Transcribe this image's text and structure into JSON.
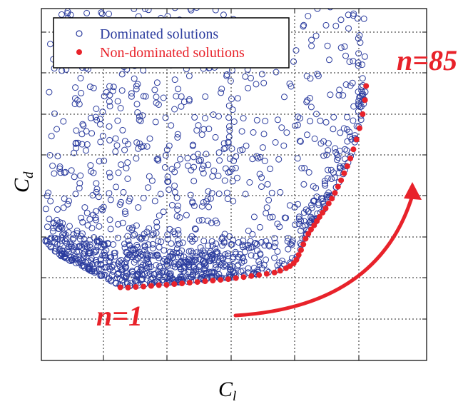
{
  "chart_data": {
    "type": "scatter",
    "title": "",
    "xlabel": {
      "main": "C",
      "sub": "l"
    },
    "ylabel": {
      "main": "C",
      "sub": "d"
    },
    "xlim": [
      0,
      1
    ],
    "ylim": [
      0,
      1
    ],
    "grid": true,
    "legend_position": "top-left",
    "series": [
      {
        "name": "Dominated solutions",
        "marker": "open-circle",
        "color": "#2b3c9e",
        "points": []
      },
      {
        "name": "Non-dominated solutions",
        "marker": "filled-circle",
        "color": "#e8222a",
        "points": [
          [
            0.205,
            0.208
          ],
          [
            0.225,
            0.207
          ],
          [
            0.245,
            0.209
          ],
          [
            0.265,
            0.21
          ],
          [
            0.285,
            0.212
          ],
          [
            0.305,
            0.214
          ],
          [
            0.325,
            0.215
          ],
          [
            0.345,
            0.217
          ],
          [
            0.365,
            0.219
          ],
          [
            0.385,
            0.221
          ],
          [
            0.405,
            0.223
          ],
          [
            0.425,
            0.225
          ],
          [
            0.445,
            0.227
          ],
          [
            0.465,
            0.229
          ],
          [
            0.485,
            0.231
          ],
          [
            0.505,
            0.234
          ],
          [
            0.525,
            0.237
          ],
          [
            0.545,
            0.24
          ],
          [
            0.565,
            0.243
          ],
          [
            0.585,
            0.246
          ],
          [
            0.605,
            0.25
          ],
          [
            0.62,
            0.255
          ],
          [
            0.635,
            0.262
          ],
          [
            0.645,
            0.268
          ],
          [
            0.655,
            0.276
          ],
          [
            0.662,
            0.286
          ],
          [
            0.668,
            0.3
          ],
          [
            0.674,
            0.314
          ],
          [
            0.68,
            0.33
          ],
          [
            0.686,
            0.346
          ],
          [
            0.693,
            0.36
          ],
          [
            0.7,
            0.372
          ],
          [
            0.708,
            0.384
          ],
          [
            0.715,
            0.396
          ],
          [
            0.722,
            0.408
          ],
          [
            0.73,
            0.42
          ],
          [
            0.738,
            0.432
          ],
          [
            0.746,
            0.446
          ],
          [
            0.754,
            0.46
          ],
          [
            0.762,
            0.476
          ],
          [
            0.77,
            0.494
          ],
          [
            0.778,
            0.512
          ],
          [
            0.786,
            0.532
          ],
          [
            0.794,
            0.552
          ],
          [
            0.802,
            0.574
          ],
          [
            0.81,
            0.6
          ],
          [
            0.818,
            0.628
          ],
          [
            0.826,
            0.66
          ],
          [
            0.834,
            0.7
          ],
          [
            0.84,
            0.74
          ],
          [
            0.843,
            0.78
          ]
        ]
      }
    ],
    "annotations": [
      {
        "text": "n=1"
      },
      {
        "text": "n=85"
      }
    ]
  },
  "dominated_spec": {
    "count": 1400,
    "seed": 7
  }
}
